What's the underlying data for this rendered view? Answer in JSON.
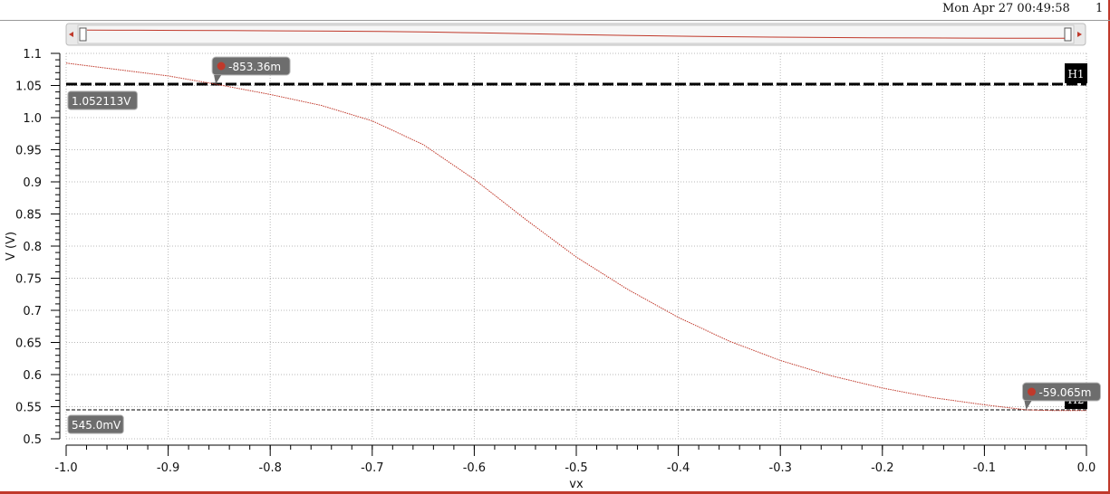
{
  "header": {
    "timestamp": "Mon Apr 27 00:49:58",
    "page_number": "1"
  },
  "colors": {
    "curve": "#c0392b",
    "grid": "#b8b8b8",
    "label_bg": "#6d6d6d",
    "h_marker_bg": "#000000",
    "frame": "#c0392b"
  },
  "chart_data": {
    "type": "line",
    "xlabel": "vx",
    "ylabel": "V (V)",
    "xlim": [
      -1.0,
      0.0
    ],
    "ylim": [
      0.5,
      1.1
    ],
    "x_ticks": [
      "-1.0",
      "-0.9",
      "-0.8",
      "-0.7",
      "-0.6",
      "-0.5",
      "-0.4",
      "-0.3",
      "-0.2",
      "-0.1",
      "0.0"
    ],
    "y_ticks": [
      "0.5",
      "0.55",
      "0.6",
      "0.65",
      "0.7",
      "0.75",
      "0.8",
      "0.85",
      "0.9",
      "0.95",
      "1.0",
      "1.05",
      "1.1"
    ],
    "grid": true,
    "series": [
      {
        "x": [
          -1.0,
          -0.95,
          -0.9,
          -0.853,
          -0.8,
          -0.75,
          -0.7,
          -0.65,
          -0.6,
          -0.55,
          -0.5,
          -0.45,
          -0.4,
          -0.35,
          -0.3,
          -0.25,
          -0.2,
          -0.15,
          -0.1,
          -0.059,
          -0.03,
          0.0
        ],
        "values": [
          1.085,
          1.075,
          1.065,
          1.052,
          1.036,
          1.019,
          0.995,
          0.958,
          0.904,
          0.842,
          0.783,
          0.733,
          0.689,
          0.652,
          0.622,
          0.598,
          0.579,
          0.564,
          0.553,
          0.545,
          0.544,
          0.544
        ]
      }
    ],
    "horizontal_markers": [
      {
        "name": "H1",
        "value": 1.052113,
        "label": "1.052113V",
        "style": "dashed-bold"
      },
      {
        "name": "H2",
        "value": 0.545,
        "label": "545.0mV",
        "style": "thin-dashed"
      }
    ],
    "intercept_markers": [
      {
        "x": -0.85336,
        "y": 1.052113,
        "label": "-853.36m"
      },
      {
        "x": -0.059065,
        "y": 0.545,
        "label": "-59.065m"
      }
    ]
  }
}
